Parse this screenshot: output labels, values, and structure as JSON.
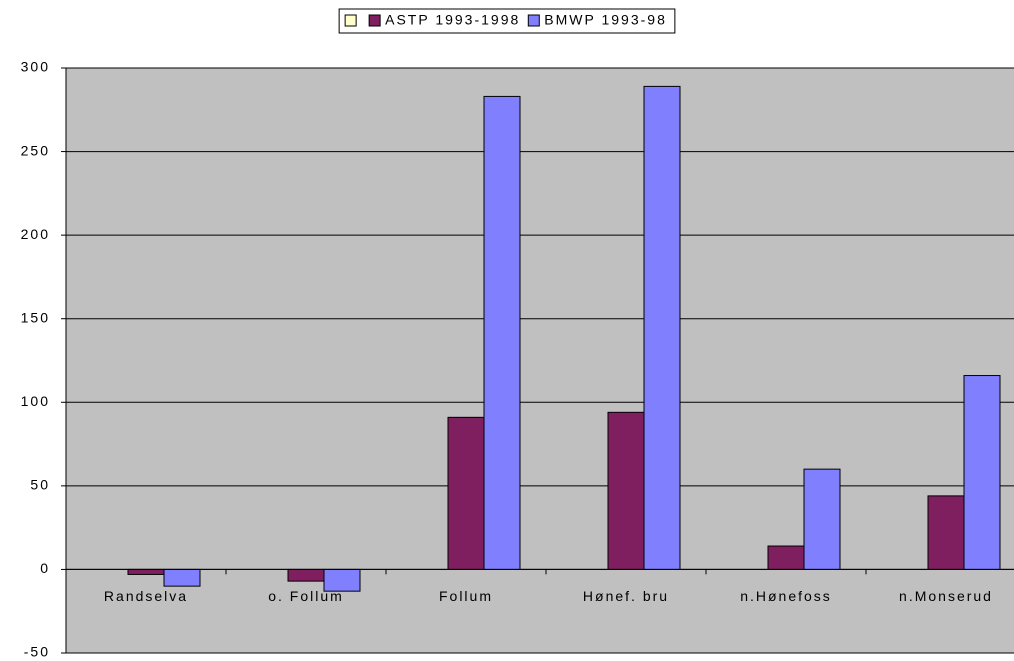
{
  "chart_data": {
    "type": "bar",
    "categories": [
      "Randselva",
      "o. Follum",
      "Follum",
      "Hønef. bru",
      "n.Hønefoss",
      "n.Monserud"
    ],
    "series": [
      {
        "name": null,
        "color": "#ffffcc",
        "values": [
          null,
          null,
          null,
          null,
          null,
          null
        ]
      },
      {
        "name": "ASTP 1993-1998",
        "color": "#7f1f5f",
        "values": [
          -3,
          -7,
          91,
          94,
          14,
          44
        ]
      },
      {
        "name": "BMWP 1993-98",
        "color": "#8080ff",
        "values": [
          -10,
          -13,
          283,
          289,
          60,
          116
        ]
      }
    ],
    "ylim": [
      -50,
      300
    ],
    "yticks": [
      -50,
      0,
      50,
      100,
      150,
      200,
      250,
      300
    ],
    "grid": true,
    "legend": "top",
    "plot_background": "#c0c0c0"
  }
}
